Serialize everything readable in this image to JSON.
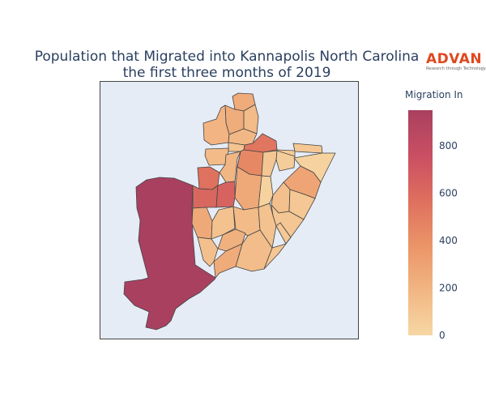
{
  "chart": {
    "title_line1": "Population that Migrated into Kannapolis North Carolina",
    "title_line2": "the first three months of 2019"
  },
  "logo": {
    "word": "ADVAN",
    "tagline": "Research through Technology",
    "color": "#e0481f"
  },
  "colorbar": {
    "title": "Migration In",
    "min": 0,
    "max": 950,
    "ticks": [
      0,
      200,
      400,
      600,
      800
    ],
    "colorscale": [
      "#f7d7a4",
      "#f1b683",
      "#eb9468",
      "#de6f5e",
      "#c94f63",
      "#a9405f"
    ]
  },
  "colors": {
    "map_background": "#e5ecf6",
    "region_border": "#444444",
    "text": "#2a3f5f"
  },
  "chart_data": {
    "type": "choropleth",
    "title": "Population that Migrated into Kannapolis North Carolina the first three months of 2019",
    "colorbar_title": "Migration In",
    "color_range": [
      0,
      950
    ],
    "regions": [
      {
        "id": "r01",
        "value": 950
      },
      {
        "id": "r02",
        "value": 250
      },
      {
        "id": "r03",
        "value": 240
      },
      {
        "id": "r04",
        "value": 160
      },
      {
        "id": "r05",
        "value": 200
      },
      {
        "id": "r06",
        "value": 180
      },
      {
        "id": "r07",
        "value": 110
      },
      {
        "id": "r08",
        "value": 160
      },
      {
        "id": "r09",
        "value": 540
      },
      {
        "id": "r10",
        "value": 70
      },
      {
        "id": "r11",
        "value": 90
      },
      {
        "id": "r12",
        "value": 560
      },
      {
        "id": "r13",
        "value": 190
      },
      {
        "id": "r14",
        "value": 440
      },
      {
        "id": "r15",
        "value": 100
      },
      {
        "id": "r16",
        "value": 60
      },
      {
        "id": "r17",
        "value": 620
      },
      {
        "id": "r18",
        "value": 30
      },
      {
        "id": "r19",
        "value": 290
      },
      {
        "id": "r20",
        "value": 30
      },
      {
        "id": "r21",
        "value": 260
      },
      {
        "id": "r22",
        "value": 640
      },
      {
        "id": "r23",
        "value": 140
      },
      {
        "id": "r24",
        "value": 90
      },
      {
        "id": "r25",
        "value": 260
      },
      {
        "id": "r26",
        "value": 120
      },
      {
        "id": "r27",
        "value": 160
      },
      {
        "id": "r28",
        "value": 120
      },
      {
        "id": "r29",
        "value": 100
      },
      {
        "id": "r30",
        "value": 130
      },
      {
        "id": "r31",
        "value": 80
      },
      {
        "id": "r32",
        "value": 220
      },
      {
        "id": "r33",
        "value": 90
      },
      {
        "id": "r34",
        "value": 150
      },
      {
        "id": "r35",
        "value": 250
      }
    ]
  }
}
